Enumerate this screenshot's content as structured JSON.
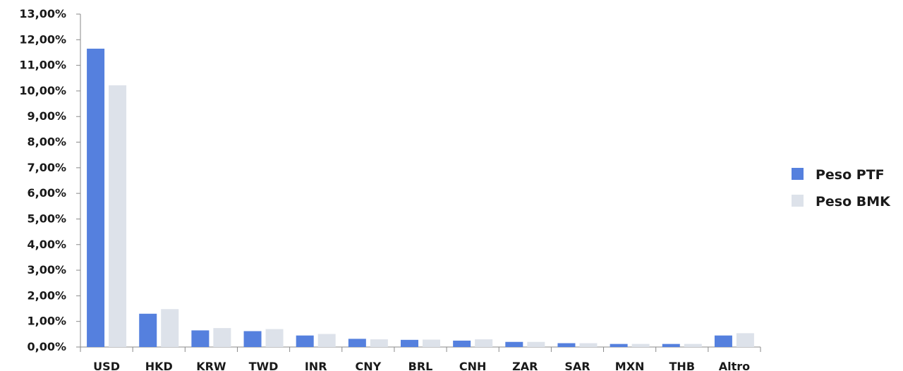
{
  "chart_data": {
    "type": "bar",
    "title": "",
    "xlabel": "",
    "ylabel": "",
    "categories": [
      "USD",
      "HKD",
      "KRW",
      "TWD",
      "INR",
      "CNY",
      "BRL",
      "CNH",
      "ZAR",
      "SAR",
      "MXN",
      "THB",
      "Altro"
    ],
    "series": [
      {
        "name": "Peso PTF",
        "color": "#5580de",
        "values": [
          11.65,
          1.3,
          0.65,
          0.62,
          0.45,
          0.32,
          0.28,
          0.25,
          0.2,
          0.15,
          0.12,
          0.12,
          0.45
        ]
      },
      {
        "name": "Peso BMK",
        "color": "#dde2ea",
        "values": [
          10.22,
          1.48,
          0.74,
          0.7,
          0.51,
          0.3,
          0.29,
          0.3,
          0.2,
          0.15,
          0.12,
          0.12,
          0.54
        ]
      }
    ],
    "ylim": [
      0,
      13
    ],
    "y_tick_step": 1,
    "y_tick_labels": [
      "0,00%",
      "1,00%",
      "2,00%",
      "3,00%",
      "4,00%",
      "5,00%",
      "6,00%",
      "7,00%",
      "8,00%",
      "9,00%",
      "10,00%",
      "11,00%",
      "12,00%",
      "13,00%"
    ],
    "grid": false,
    "legend_position": "right"
  }
}
